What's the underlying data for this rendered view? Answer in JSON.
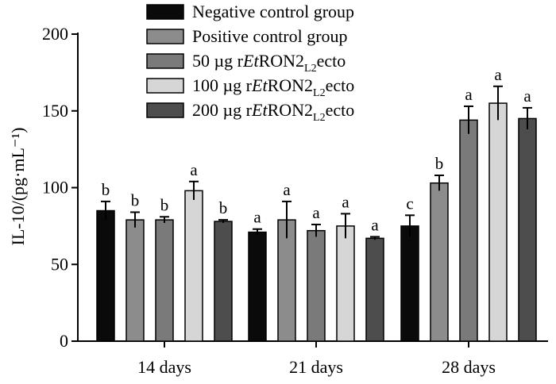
{
  "chart_data": {
    "type": "bar",
    "title": "",
    "xlabel": "",
    "ylabel": "IL-10/(pg·mL⁻¹)",
    "ylim": [
      0,
      200
    ],
    "yticks": [
      0,
      50,
      100,
      150,
      200
    ],
    "grid": false,
    "legend_position": "top-right",
    "categories": [
      "14 days",
      "21 days",
      "28 days"
    ],
    "series": [
      {
        "name": "Negative control group",
        "legend": {
          "pre": "Negative control group",
          "italic": "",
          "mid": "",
          "sub": "",
          "post": ""
        },
        "color": "#0a0a0a",
        "values": [
          85,
          71,
          75
        ],
        "errors": [
          6,
          2,
          7
        ],
        "labels": [
          "b",
          "a",
          "c"
        ]
      },
      {
        "name": "Positive control group",
        "legend": {
          "pre": "Positive control group",
          "italic": "",
          "mid": "",
          "sub": "",
          "post": ""
        },
        "color": "#8c8c8c",
        "values": [
          79,
          79,
          103
        ],
        "errors": [
          5,
          12,
          5
        ],
        "labels": [
          "b",
          "a",
          "b"
        ]
      },
      {
        "name": "50 µg rEtRON2L2ecto",
        "legend": {
          "pre": "50 µg r",
          "italic": "Et",
          "mid": "RON2",
          "sub": "L2",
          "post": "ecto"
        },
        "color": "#7a7a7a",
        "values": [
          79,
          72,
          144
        ],
        "errors": [
          2,
          4,
          9
        ],
        "labels": [
          "b",
          "a",
          "a"
        ]
      },
      {
        "name": "100 µg rEtRON2L2ecto",
        "legend": {
          "pre": "100 µg r",
          "italic": "Et",
          "mid": "RON2",
          "sub": "L2",
          "post": "ecto"
        },
        "color": "#d6d6d6",
        "values": [
          98,
          75,
          155
        ],
        "errors": [
          6,
          8,
          11
        ],
        "labels": [
          "a",
          "a",
          "a"
        ]
      },
      {
        "name": "200 µg rEtRON2L2ecto",
        "legend": {
          "pre": "200 µg r",
          "italic": "Et",
          "mid": "RON2",
          "sub": "L2",
          "post": "ecto"
        },
        "color": "#4d4d4d",
        "values": [
          78,
          67,
          145
        ],
        "errors": [
          1,
          1,
          7
        ],
        "labels": [
          "b",
          "a",
          "a"
        ]
      }
    ]
  }
}
